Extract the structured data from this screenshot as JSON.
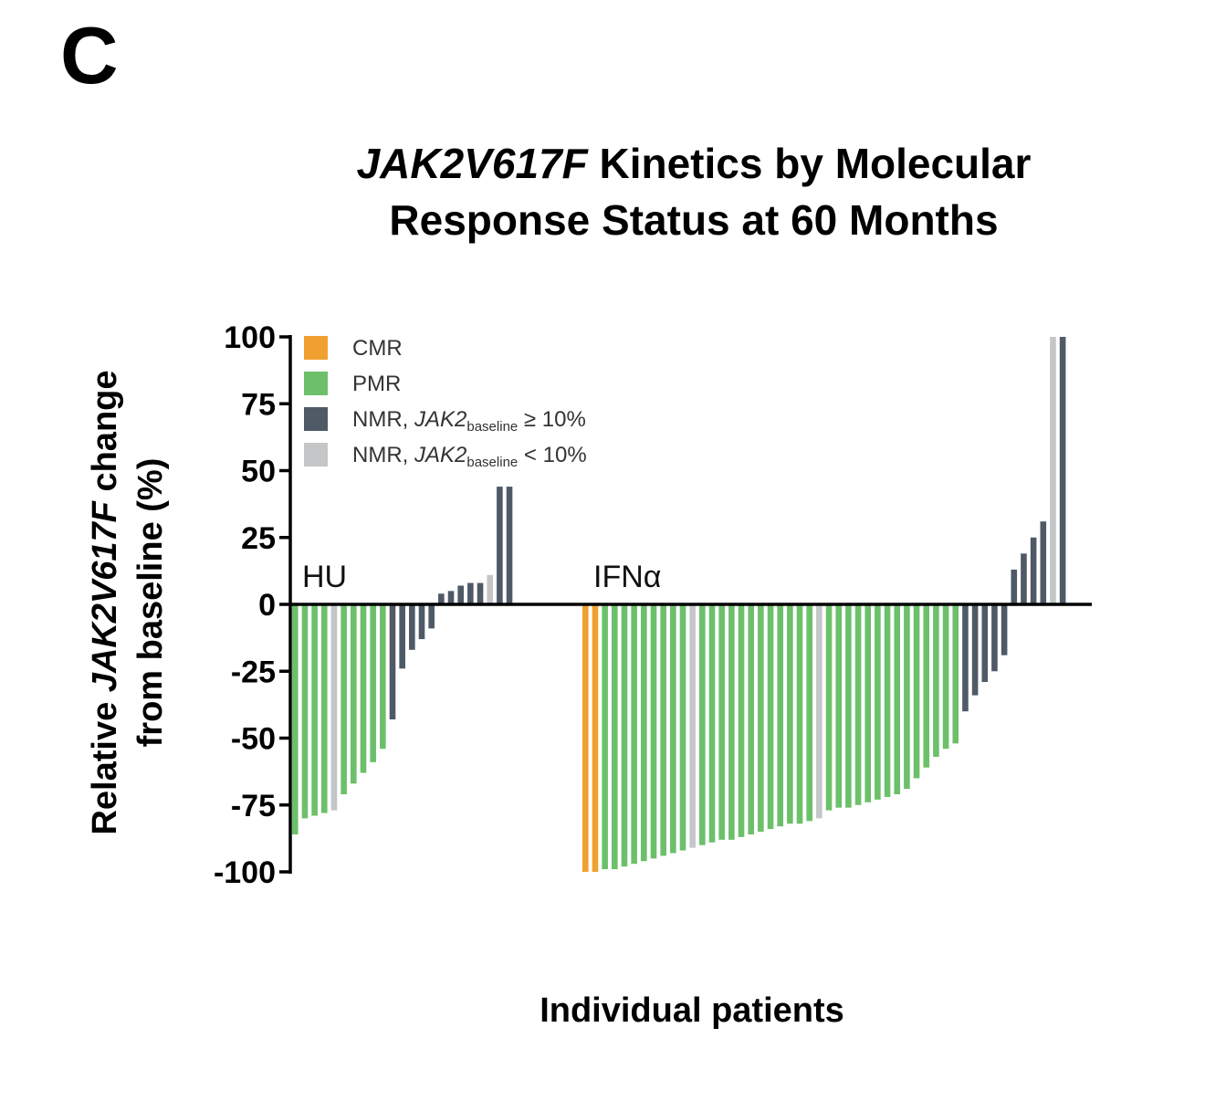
{
  "panel_label": "C",
  "chart_data": {
    "type": "bar",
    "title": {
      "italic": "JAK2V617F",
      "rest_line1": " Kinetics by Molecular",
      "line2": "Response Status at 60 Months"
    },
    "ylabel": {
      "line1_pre": "Relative ",
      "line1_italic": "JAK2V617F",
      "line1_post": " change",
      "line2": "from baseline (%)"
    },
    "xlabel": "Individual patients",
    "ylim": [
      -100,
      100
    ],
    "yticks": [
      100,
      75,
      50,
      25,
      0,
      -25,
      -50,
      -75,
      -100
    ],
    "grid": false,
    "legend_placement": "top-left",
    "legend": [
      {
        "key": "CMR",
        "label": "CMR",
        "color": "#f0a030"
      },
      {
        "key": "PMR",
        "label": "PMR",
        "color": "#6cc06a"
      },
      {
        "key": "NMR_hi",
        "label_pre": "NMR, ",
        "label_italic": "JAK2",
        "label_sub": "baseline",
        "label_post": " ≥ 10%",
        "color": "#4f5a66"
      },
      {
        "key": "NMR_lo",
        "label_pre": "NMR, ",
        "label_italic": "JAK2",
        "label_sub": "baseline",
        "label_post": " < 10%",
        "color": "#c4c6c8"
      }
    ],
    "groups": [
      {
        "name": "HU",
        "bars": [
          {
            "v": -86,
            "c": "PMR"
          },
          {
            "v": -80,
            "c": "PMR"
          },
          {
            "v": -79,
            "c": "PMR"
          },
          {
            "v": -78,
            "c": "PMR"
          },
          {
            "v": -77,
            "c": "NMR_lo"
          },
          {
            "v": -71,
            "c": "PMR"
          },
          {
            "v": -67,
            "c": "PMR"
          },
          {
            "v": -63,
            "c": "PMR"
          },
          {
            "v": -59,
            "c": "PMR"
          },
          {
            "v": -54,
            "c": "PMR"
          },
          {
            "v": -43,
            "c": "NMR_hi"
          },
          {
            "v": -24,
            "c": "NMR_hi"
          },
          {
            "v": -17,
            "c": "NMR_hi"
          },
          {
            "v": -13,
            "c": "NMR_hi"
          },
          {
            "v": -9,
            "c": "NMR_hi"
          },
          {
            "v": 4,
            "c": "NMR_hi"
          },
          {
            "v": 5,
            "c": "NMR_hi"
          },
          {
            "v": 7,
            "c": "NMR_hi"
          },
          {
            "v": 8,
            "c": "NMR_hi"
          },
          {
            "v": 8,
            "c": "NMR_hi"
          },
          {
            "v": 11,
            "c": "NMR_lo"
          },
          {
            "v": 44,
            "c": "NMR_hi"
          },
          {
            "v": 44,
            "c": "NMR_hi"
          }
        ]
      },
      {
        "name": "IFNα",
        "bars": [
          {
            "v": -100,
            "c": "CMR"
          },
          {
            "v": -100,
            "c": "CMR"
          },
          {
            "v": -99,
            "c": "PMR"
          },
          {
            "v": -99,
            "c": "PMR"
          },
          {
            "v": -98,
            "c": "PMR"
          },
          {
            "v": -97,
            "c": "PMR"
          },
          {
            "v": -96,
            "c": "PMR"
          },
          {
            "v": -95,
            "c": "PMR"
          },
          {
            "v": -94,
            "c": "PMR"
          },
          {
            "v": -93,
            "c": "PMR"
          },
          {
            "v": -92,
            "c": "PMR"
          },
          {
            "v": -91,
            "c": "NMR_lo"
          },
          {
            "v": -90,
            "c": "PMR"
          },
          {
            "v": -89,
            "c": "PMR"
          },
          {
            "v": -88,
            "c": "PMR"
          },
          {
            "v": -88,
            "c": "PMR"
          },
          {
            "v": -87,
            "c": "PMR"
          },
          {
            "v": -86,
            "c": "PMR"
          },
          {
            "v": -85,
            "c": "PMR"
          },
          {
            "v": -84,
            "c": "PMR"
          },
          {
            "v": -83,
            "c": "PMR"
          },
          {
            "v": -82,
            "c": "PMR"
          },
          {
            "v": -82,
            "c": "PMR"
          },
          {
            "v": -81,
            "c": "PMR"
          },
          {
            "v": -80,
            "c": "NMR_lo"
          },
          {
            "v": -77,
            "c": "PMR"
          },
          {
            "v": -76,
            "c": "PMR"
          },
          {
            "v": -76,
            "c": "PMR"
          },
          {
            "v": -75,
            "c": "PMR"
          },
          {
            "v": -74,
            "c": "PMR"
          },
          {
            "v": -73,
            "c": "PMR"
          },
          {
            "v": -72,
            "c": "PMR"
          },
          {
            "v": -71,
            "c": "PMR"
          },
          {
            "v": -69,
            "c": "PMR"
          },
          {
            "v": -65,
            "c": "PMR"
          },
          {
            "v": -61,
            "c": "PMR"
          },
          {
            "v": -57,
            "c": "PMR"
          },
          {
            "v": -54,
            "c": "PMR"
          },
          {
            "v": -52,
            "c": "PMR"
          },
          {
            "v": -40,
            "c": "NMR_hi"
          },
          {
            "v": -34,
            "c": "NMR_hi"
          },
          {
            "v": -29,
            "c": "NMR_hi"
          },
          {
            "v": -25,
            "c": "NMR_hi"
          },
          {
            "v": -19,
            "c": "NMR_hi"
          },
          {
            "v": 13,
            "c": "NMR_hi"
          },
          {
            "v": 19,
            "c": "NMR_hi"
          },
          {
            "v": 25,
            "c": "NMR_hi"
          },
          {
            "v": 31,
            "c": "NMR_hi"
          },
          {
            "v": 100,
            "c": "NMR_lo"
          },
          {
            "v": 100,
            "c": "NMR_hi"
          }
        ]
      }
    ]
  }
}
